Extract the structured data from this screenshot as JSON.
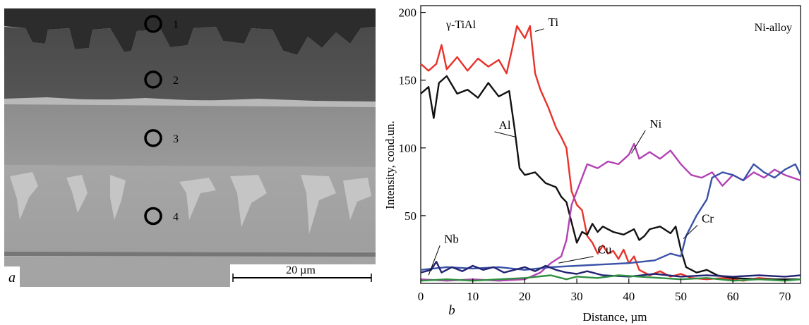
{
  "micrograph": {
    "panel_label": "a",
    "scale_bar_label": "20 µm",
    "points": [
      {
        "label": "1",
        "zone": 0.02
      },
      {
        "label": "2",
        "zone": 0.22
      },
      {
        "label": "3",
        "zone": 0.43
      },
      {
        "label": "4",
        "zone": 0.71
      }
    ]
  },
  "chart_data": {
    "type": "line",
    "panel_label": "b",
    "xlabel": "Distance, µm",
    "ylabel": "Intensity, cond.un.",
    "xlim": [
      0,
      73
    ],
    "ylim": [
      0,
      205
    ],
    "xticks": [
      0,
      10,
      20,
      30,
      40,
      50,
      60,
      70
    ],
    "yticks": [
      50,
      100,
      150,
      200
    ],
    "annotations_top": {
      "left": "γ-TiAl",
      "right": "Ni-alloy"
    },
    "grid": false,
    "series": [
      {
        "name": "Ti",
        "color": "#e8322a",
        "points": [
          [
            0,
            162
          ],
          [
            1.5,
            157
          ],
          [
            3,
            162
          ],
          [
            4,
            176
          ],
          [
            5,
            158
          ],
          [
            7,
            167
          ],
          [
            9,
            157
          ],
          [
            11,
            166
          ],
          [
            13,
            160
          ],
          [
            15,
            165
          ],
          [
            16.5,
            155
          ],
          [
            17.5,
            172
          ],
          [
            18.5,
            190
          ],
          [
            20,
            181
          ],
          [
            21,
            190
          ],
          [
            22,
            155
          ],
          [
            23,
            143
          ],
          [
            24.5,
            130
          ],
          [
            26,
            115
          ],
          [
            27,
            108
          ],
          [
            28,
            100
          ],
          [
            29,
            68
          ],
          [
            30,
            58
          ],
          [
            31,
            54
          ],
          [
            32,
            35
          ],
          [
            33,
            30
          ],
          [
            34,
            22
          ],
          [
            35,
            28
          ],
          [
            36,
            22
          ],
          [
            37,
            24
          ],
          [
            38,
            18
          ],
          [
            39,
            25
          ],
          [
            40,
            15
          ],
          [
            41,
            20
          ],
          [
            42,
            10
          ],
          [
            44,
            6
          ],
          [
            46,
            9
          ],
          [
            48,
            5
          ],
          [
            50,
            7
          ],
          [
            52,
            4
          ],
          [
            55,
            3
          ],
          [
            58,
            4
          ],
          [
            62,
            2
          ],
          [
            65,
            4
          ],
          [
            68,
            3
          ],
          [
            73,
            3
          ]
        ]
      },
      {
        "name": "Al",
        "color": "#111111",
        "points": [
          [
            0,
            140
          ],
          [
            1.5,
            145
          ],
          [
            2.5,
            122
          ],
          [
            3.5,
            148
          ],
          [
            5,
            153
          ],
          [
            7,
            140
          ],
          [
            9,
            143
          ],
          [
            11,
            137
          ],
          [
            13,
            148
          ],
          [
            15,
            138
          ],
          [
            17,
            142
          ],
          [
            18,
            115
          ],
          [
            19,
            85
          ],
          [
            20,
            80
          ],
          [
            22,
            82
          ],
          [
            24,
            74
          ],
          [
            26,
            71
          ],
          [
            27,
            64
          ],
          [
            28,
            60
          ],
          [
            29,
            45
          ],
          [
            30,
            30
          ],
          [
            31,
            38
          ],
          [
            32,
            36
          ],
          [
            33,
            44
          ],
          [
            34,
            38
          ],
          [
            35,
            42
          ],
          [
            37,
            38
          ],
          [
            39,
            36
          ],
          [
            41,
            40
          ],
          [
            42,
            32
          ],
          [
            43,
            35
          ],
          [
            44,
            40
          ],
          [
            46,
            42
          ],
          [
            48,
            37
          ],
          [
            49,
            42
          ],
          [
            50,
            25
          ],
          [
            51,
            12
          ],
          [
            53,
            8
          ],
          [
            55,
            10
          ],
          [
            57,
            6
          ],
          [
            60,
            4
          ],
          [
            65,
            3
          ],
          [
            70,
            3
          ],
          [
            73,
            3
          ]
        ]
      },
      {
        "name": "Ni",
        "color": "#b341b3",
        "points": [
          [
            0,
            3
          ],
          [
            5,
            2
          ],
          [
            10,
            3
          ],
          [
            15,
            2
          ],
          [
            20,
            3
          ],
          [
            23,
            8
          ],
          [
            25,
            15
          ],
          [
            27,
            20
          ],
          [
            28,
            32
          ],
          [
            29,
            58
          ],
          [
            30,
            68
          ],
          [
            31,
            78
          ],
          [
            32,
            88
          ],
          [
            34,
            85
          ],
          [
            36,
            90
          ],
          [
            38,
            88
          ],
          [
            40,
            95
          ],
          [
            41,
            103
          ],
          [
            42,
            92
          ],
          [
            44,
            97
          ],
          [
            46,
            92
          ],
          [
            48,
            98
          ],
          [
            50,
            88
          ],
          [
            52,
            80
          ],
          [
            54,
            78
          ],
          [
            56,
            82
          ],
          [
            58,
            72
          ],
          [
            60,
            80
          ],
          [
            62,
            76
          ],
          [
            64,
            82
          ],
          [
            66,
            78
          ],
          [
            68,
            84
          ],
          [
            70,
            80
          ],
          [
            73,
            76
          ]
        ]
      },
      {
        "name": "Cr",
        "color": "#3a52a8",
        "points": [
          [
            0,
            10
          ],
          [
            5,
            12
          ],
          [
            10,
            11
          ],
          [
            15,
            12
          ],
          [
            20,
            10
          ],
          [
            25,
            12
          ],
          [
            30,
            13
          ],
          [
            35,
            14
          ],
          [
            40,
            15
          ],
          [
            45,
            17
          ],
          [
            48,
            22
          ],
          [
            50,
            20
          ],
          [
            51,
            35
          ],
          [
            53,
            50
          ],
          [
            55,
            62
          ],
          [
            56,
            78
          ],
          [
            58,
            82
          ],
          [
            60,
            80
          ],
          [
            62,
            76
          ],
          [
            64,
            88
          ],
          [
            66,
            82
          ],
          [
            68,
            78
          ],
          [
            70,
            84
          ],
          [
            72,
            88
          ],
          [
            73,
            80
          ]
        ]
      },
      {
        "name": "Nb",
        "color": "#232373",
        "points": [
          [
            0,
            8
          ],
          [
            2,
            10
          ],
          [
            3,
            16
          ],
          [
            4,
            8
          ],
          [
            6,
            12
          ],
          [
            8,
            9
          ],
          [
            10,
            13
          ],
          [
            12,
            10
          ],
          [
            14,
            12
          ],
          [
            16,
            8
          ],
          [
            18,
            10
          ],
          [
            20,
            12
          ],
          [
            22,
            9
          ],
          [
            24,
            13
          ],
          [
            26,
            10
          ],
          [
            28,
            8
          ],
          [
            30,
            7
          ],
          [
            32,
            9
          ],
          [
            35,
            6
          ],
          [
            40,
            5
          ],
          [
            45,
            7
          ],
          [
            50,
            5
          ],
          [
            55,
            6
          ],
          [
            60,
            5
          ],
          [
            65,
            6
          ],
          [
            70,
            5
          ],
          [
            73,
            6
          ]
        ]
      },
      {
        "name": "Cu",
        "color": "#2f8f3f",
        "points": [
          [
            0,
            2
          ],
          [
            5,
            3
          ],
          [
            10,
            2
          ],
          [
            15,
            3
          ],
          [
            20,
            4
          ],
          [
            25,
            6
          ],
          [
            28,
            3
          ],
          [
            30,
            5
          ],
          [
            34,
            4
          ],
          [
            38,
            6
          ],
          [
            42,
            5
          ],
          [
            46,
            4
          ],
          [
            50,
            3
          ],
          [
            55,
            4
          ],
          [
            60,
            2
          ],
          [
            65,
            3
          ],
          [
            70,
            2
          ],
          [
            73,
            3
          ]
        ]
      }
    ],
    "series_labels": [
      {
        "name": "Ti",
        "at": [
          22,
          186
        ],
        "label_pos": [
          24.5,
          190
        ]
      },
      {
        "name": "Al",
        "at": [
          18.3,
          108
        ],
        "label_pos": [
          15,
          114
        ]
      },
      {
        "name": "Ni",
        "at": [
          40.5,
          96
        ],
        "label_pos": [
          44,
          115
        ]
      },
      {
        "name": "Cr",
        "at": [
          50.5,
          33
        ],
        "label_pos": [
          54,
          45
        ]
      },
      {
        "name": "Nb",
        "at": [
          1.5,
          6
        ],
        "label_pos": [
          4.5,
          30
        ]
      },
      {
        "name": "Cu",
        "at": [
          26.5,
          15
        ],
        "label_pos": [
          34,
          22
        ]
      }
    ]
  }
}
